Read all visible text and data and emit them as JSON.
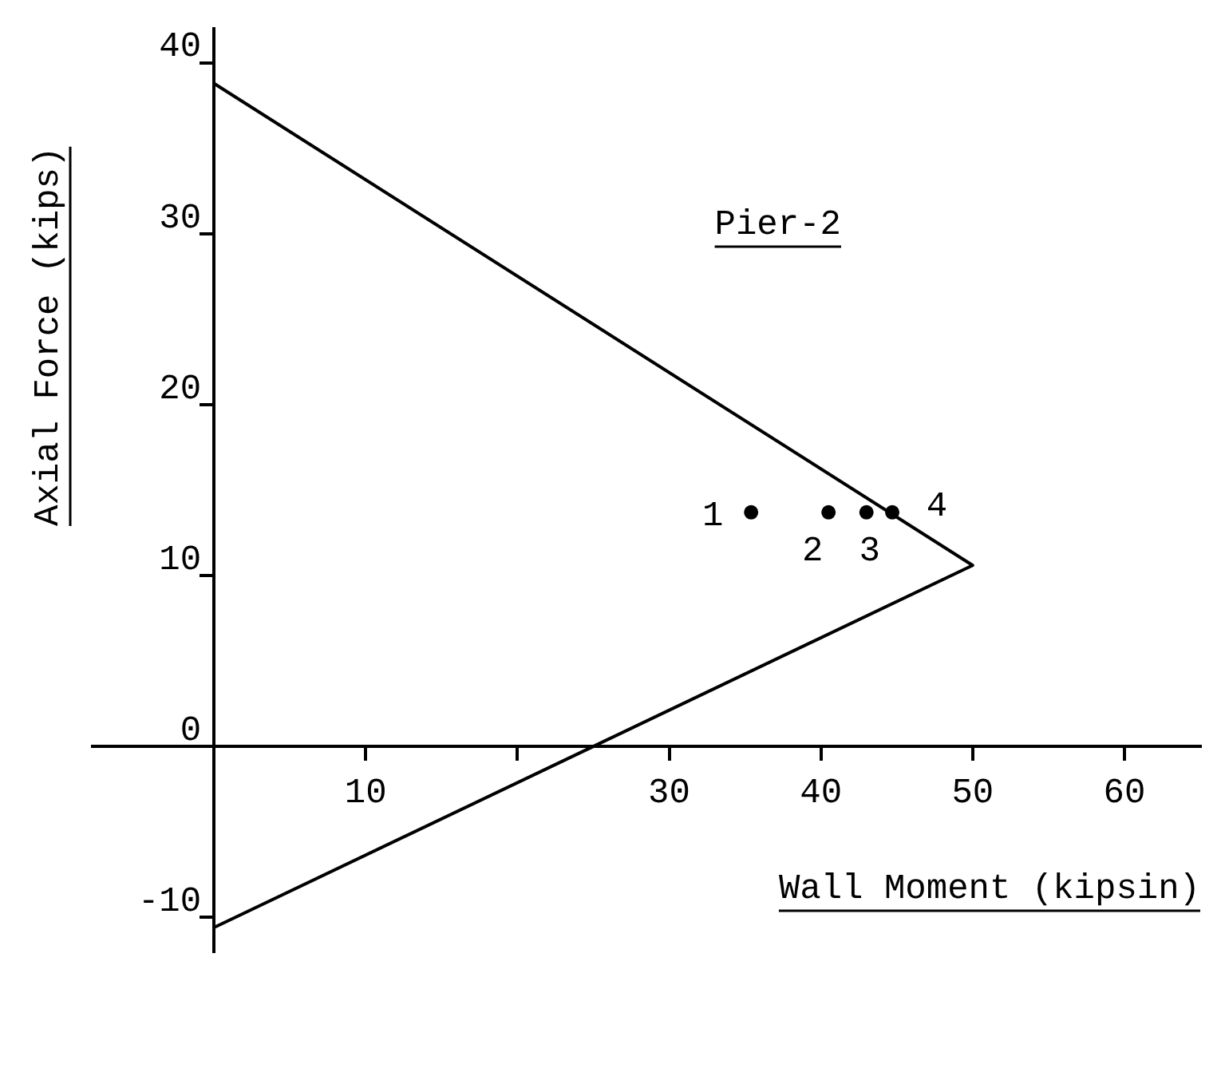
{
  "chart_data": {
    "type": "line",
    "title": "Pier-2",
    "xlabel": "Wall Moment (kipsin)",
    "ylabel": "Axial Force (kips)",
    "xlim": [
      -8,
      65
    ],
    "ylim": [
      -12,
      42
    ],
    "xticks": [
      10,
      {
        "value": 20,
        "label": null
      },
      30,
      40,
      50,
      60
    ],
    "yticks": [
      -10,
      0,
      10,
      20,
      30,
      40
    ],
    "grid": false,
    "legend": false,
    "series": [
      {
        "type": "line",
        "color": "#000000",
        "marker": "none",
        "x": [
          0,
          50,
          25,
          0
        ],
        "values": [
          38.8,
          10.6,
          0,
          -10.6
        ]
      },
      {
        "type": "scatter",
        "color": "#000000",
        "marker": "circle",
        "x": [
          35.4,
          40.5,
          43.0,
          44.7
        ],
        "values": [
          13.7,
          13.7,
          13.7,
          13.7
        ]
      }
    ],
    "annotations": [
      {
        "text": "1",
        "x": 35.4,
        "y": 13.7
      },
      {
        "text": "2",
        "x": 40.5,
        "y": 13.7
      },
      {
        "text": "3",
        "x": 43.0,
        "y": 13.7
      },
      {
        "text": "4",
        "x": 44.7,
        "y": 13.7
      }
    ]
  }
}
